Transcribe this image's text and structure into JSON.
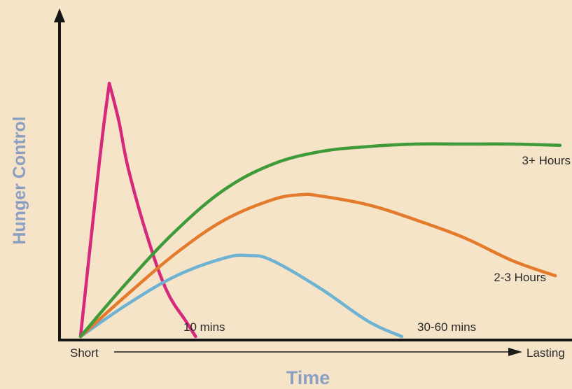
{
  "chart_data": {
    "type": "line",
    "title": "",
    "xlabel": "Time",
    "ylabel": "Hunger Control",
    "x_start_label": "Short",
    "x_end_label": "Lasting",
    "grid": false,
    "xlim": [
      0,
      100
    ],
    "ylim": [
      0,
      100
    ],
    "series": [
      {
        "name": "10 mins",
        "color": "#d6297c",
        "x": [
          0,
          4,
          6,
          8,
          10,
          14,
          18,
          22,
          24
        ],
        "y": [
          0,
          70,
          100,
          85,
          66,
          39,
          18,
          6,
          0
        ]
      },
      {
        "name": "30-60 mins",
        "color": "#6fb3d3",
        "x": [
          0,
          10,
          20,
          30,
          35,
          40,
          50,
          60,
          67
        ],
        "y": [
          0,
          13,
          24,
          31,
          32,
          30,
          19,
          6,
          0
        ]
      },
      {
        "name": "2-3 Hours",
        "color": "#e37a2c",
        "x": [
          0,
          10,
          20,
          30,
          40,
          46,
          50,
          60,
          70,
          80,
          90,
          99
        ],
        "y": [
          0,
          17,
          33,
          46,
          54,
          56,
          55.5,
          52,
          46,
          39,
          30,
          24
        ]
      },
      {
        "name": "3+ Hours",
        "color": "#3f9a3a",
        "x": [
          0,
          10,
          20,
          30,
          40,
          50,
          60,
          70,
          80,
          90,
          100
        ],
        "y": [
          0,
          22,
          42,
          58,
          68,
          73,
          75,
          76,
          76,
          76,
          75.5
        ]
      }
    ]
  }
}
